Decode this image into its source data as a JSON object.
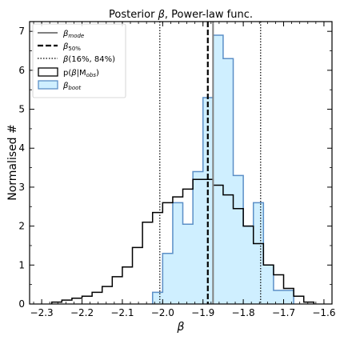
{
  "chart_data": {
    "type": "histogram",
    "title": "Posterior β, Power-law func.",
    "xlabel": "β",
    "ylabel": "Normalised #",
    "xlim": [
      -2.33,
      -1.58
    ],
    "ylim": [
      0,
      7.25
    ],
    "xticks": [
      -2.3,
      -2.2,
      -2.1,
      -2.0,
      -1.9,
      -1.8,
      -1.7,
      -1.6
    ],
    "xtick_labels": [
      "−2.3",
      "−2.2",
      "−2.1",
      "−2.0",
      "−1.9",
      "−1.8",
      "−1.7",
      "−1.6"
    ],
    "yticks": [
      0,
      1,
      2,
      3,
      4,
      5,
      6,
      7
    ],
    "ytick_labels": [
      "0",
      "1",
      "2",
      "3",
      "4",
      "5",
      "6",
      "7"
    ],
    "grid": false,
    "legend_position": "top-left",
    "bin_edges": [
      -2.3,
      -2.275,
      -2.25,
      -2.225,
      -2.2,
      -2.175,
      -2.15,
      -2.125,
      -2.1,
      -2.075,
      -2.05,
      -2.025,
      -2.0,
      -1.975,
      -1.95,
      -1.925,
      -1.9,
      -1.875,
      -1.85,
      -1.825,
      -1.8,
      -1.775,
      -1.75,
      -1.725,
      -1.7,
      -1.675,
      -1.65,
      -1.625,
      -1.6
    ],
    "posterior_values": [
      0.05,
      0.1,
      0.15,
      0.2,
      0.3,
      0.45,
      0.7,
      0.95,
      1.45,
      2.1,
      2.35,
      2.6,
      2.75,
      2.95,
      3.2,
      3.2,
      3.05,
      2.8,
      2.45,
      2.0,
      1.55,
      1.0,
      0.75,
      0.4,
      0.2,
      0.05
    ],
    "posterior_start": -2.275,
    "boot_bin_edges": [
      -2.025,
      -2.0,
      -1.975,
      -1.95,
      -1.925,
      -1.9,
      -1.875,
      -1.85,
      -1.825,
      -1.8,
      -1.775,
      -1.75,
      -1.725,
      -1.7,
      -1.675
    ],
    "boot_values": [
      0.3,
      1.3,
      2.6,
      2.05,
      3.4,
      5.3,
      6.9,
      6.3,
      3.3,
      2.0,
      2.6,
      1.0,
      0.35,
      0.35
    ],
    "beta_mode": -1.875,
    "beta_50": -1.888,
    "beta_16": -2.007,
    "beta_84": -1.757,
    "series": [
      {
        "name": "β_mode",
        "color": "#808080",
        "style": "solid"
      },
      {
        "name": "β_50%",
        "color": "#000000",
        "style": "dashed"
      },
      {
        "name": "β(16%, 84%)",
        "color": "#000000",
        "style": "dotted"
      },
      {
        "name": "p(β|M_obs)",
        "color": "#000000",
        "style": "step"
      },
      {
        "name": "β_boot",
        "color": "#5b8fc7",
        "fill": "#cfefff",
        "style": "filled-step"
      }
    ]
  }
}
